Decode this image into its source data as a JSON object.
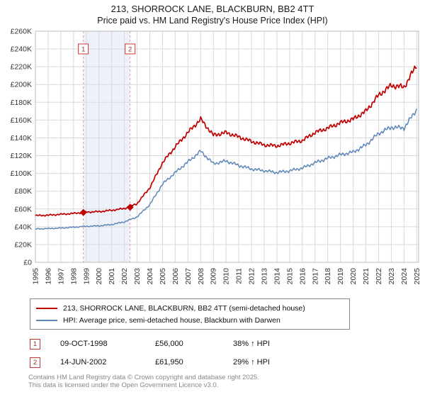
{
  "title": {
    "line1": "213, SHORROCK LANE, BLACKBURN, BB2 4TT",
    "line2": "Price paid vs. HM Land Registry's House Price Index (HPI)"
  },
  "chart_data": {
    "type": "line",
    "title": "213, SHORROCK LANE, BLACKBURN, BB2 4TT — Price paid vs. HM Land Registry's House Price Index (HPI)",
    "xlabel": "",
    "ylabel": "",
    "ylim": [
      0,
      260000
    ],
    "x_range": [
      1995,
      2025.15
    ],
    "grid": true,
    "legend_position": "bottom",
    "y_ticks": [
      "£0",
      "£20K",
      "£40K",
      "£60K",
      "£80K",
      "£100K",
      "£120K",
      "£140K",
      "£160K",
      "£180K",
      "£200K",
      "£220K",
      "£240K",
      "£260K"
    ],
    "x_ticks": [
      1995,
      1996,
      1997,
      1998,
      1999,
      2000,
      2001,
      2002,
      2003,
      2004,
      2005,
      2006,
      2007,
      2008,
      2009,
      2010,
      2011,
      2012,
      2013,
      2014,
      2015,
      2016,
      2017,
      2018,
      2019,
      2020,
      2021,
      2022,
      2023,
      2024,
      2025
    ],
    "band": [
      1998.77,
      2002.45
    ],
    "x": [
      1995,
      1996,
      1997,
      1998,
      1999,
      2000,
      2001,
      2002,
      2003,
      2004,
      2005,
      2006,
      2007,
      2008,
      2009,
      2010,
      2011,
      2012,
      2013,
      2014,
      2015,
      2016,
      2017,
      2018,
      2019,
      2020,
      2021,
      2022,
      2023,
      2024,
      2025
    ],
    "series": [
      {
        "name": "213, SHORROCK LANE, BLACKBURN, BB2 4TT (semi-detached house)",
        "color": "#c00000",
        "values": [
          52500,
          53000,
          54000,
          55000,
          56500,
          57000,
          58500,
          60500,
          66000,
          84000,
          112000,
          130000,
          146000,
          161000,
          143000,
          146000,
          141000,
          136000,
          132000,
          131000,
          134000,
          137000,
          146000,
          151000,
          157000,
          161000,
          170000,
          188000,
          199000,
          197000,
          222000
        ]
      },
      {
        "name": "HPI: Average price, semi-detached house, Blackburn with Darwen",
        "color": "#5e87b8",
        "values": [
          37500,
          38000,
          38500,
          39500,
          40500,
          41000,
          42500,
          45500,
          51000,
          65000,
          88000,
          101000,
          113000,
          125000,
          111000,
          114000,
          109000,
          105000,
          103000,
          101000,
          103000,
          106000,
          112000,
          117000,
          121000,
          124000,
          132000,
          145000,
          152000,
          151000,
          172000
        ]
      }
    ],
    "markers": [
      {
        "label": "1",
        "x": 1998.77,
        "value": 56000,
        "date": "09-OCT-1998"
      },
      {
        "label": "2",
        "x": 2002.45,
        "value": 61950,
        "date": "14-JUN-2002"
      }
    ]
  },
  "annotations": [
    {
      "num": "1",
      "date": "09-OCT-1998",
      "price": "£56,000",
      "hpi": "38% ↑ HPI"
    },
    {
      "num": "2",
      "date": "14-JUN-2002",
      "price": "£61,950",
      "hpi": "29% ↑ HPI"
    }
  ],
  "footer": {
    "line1": "Contains HM Land Registry data © Crown copyright and database right 2025.",
    "line2": "This data is licensed under the Open Government Licence v3.0."
  }
}
